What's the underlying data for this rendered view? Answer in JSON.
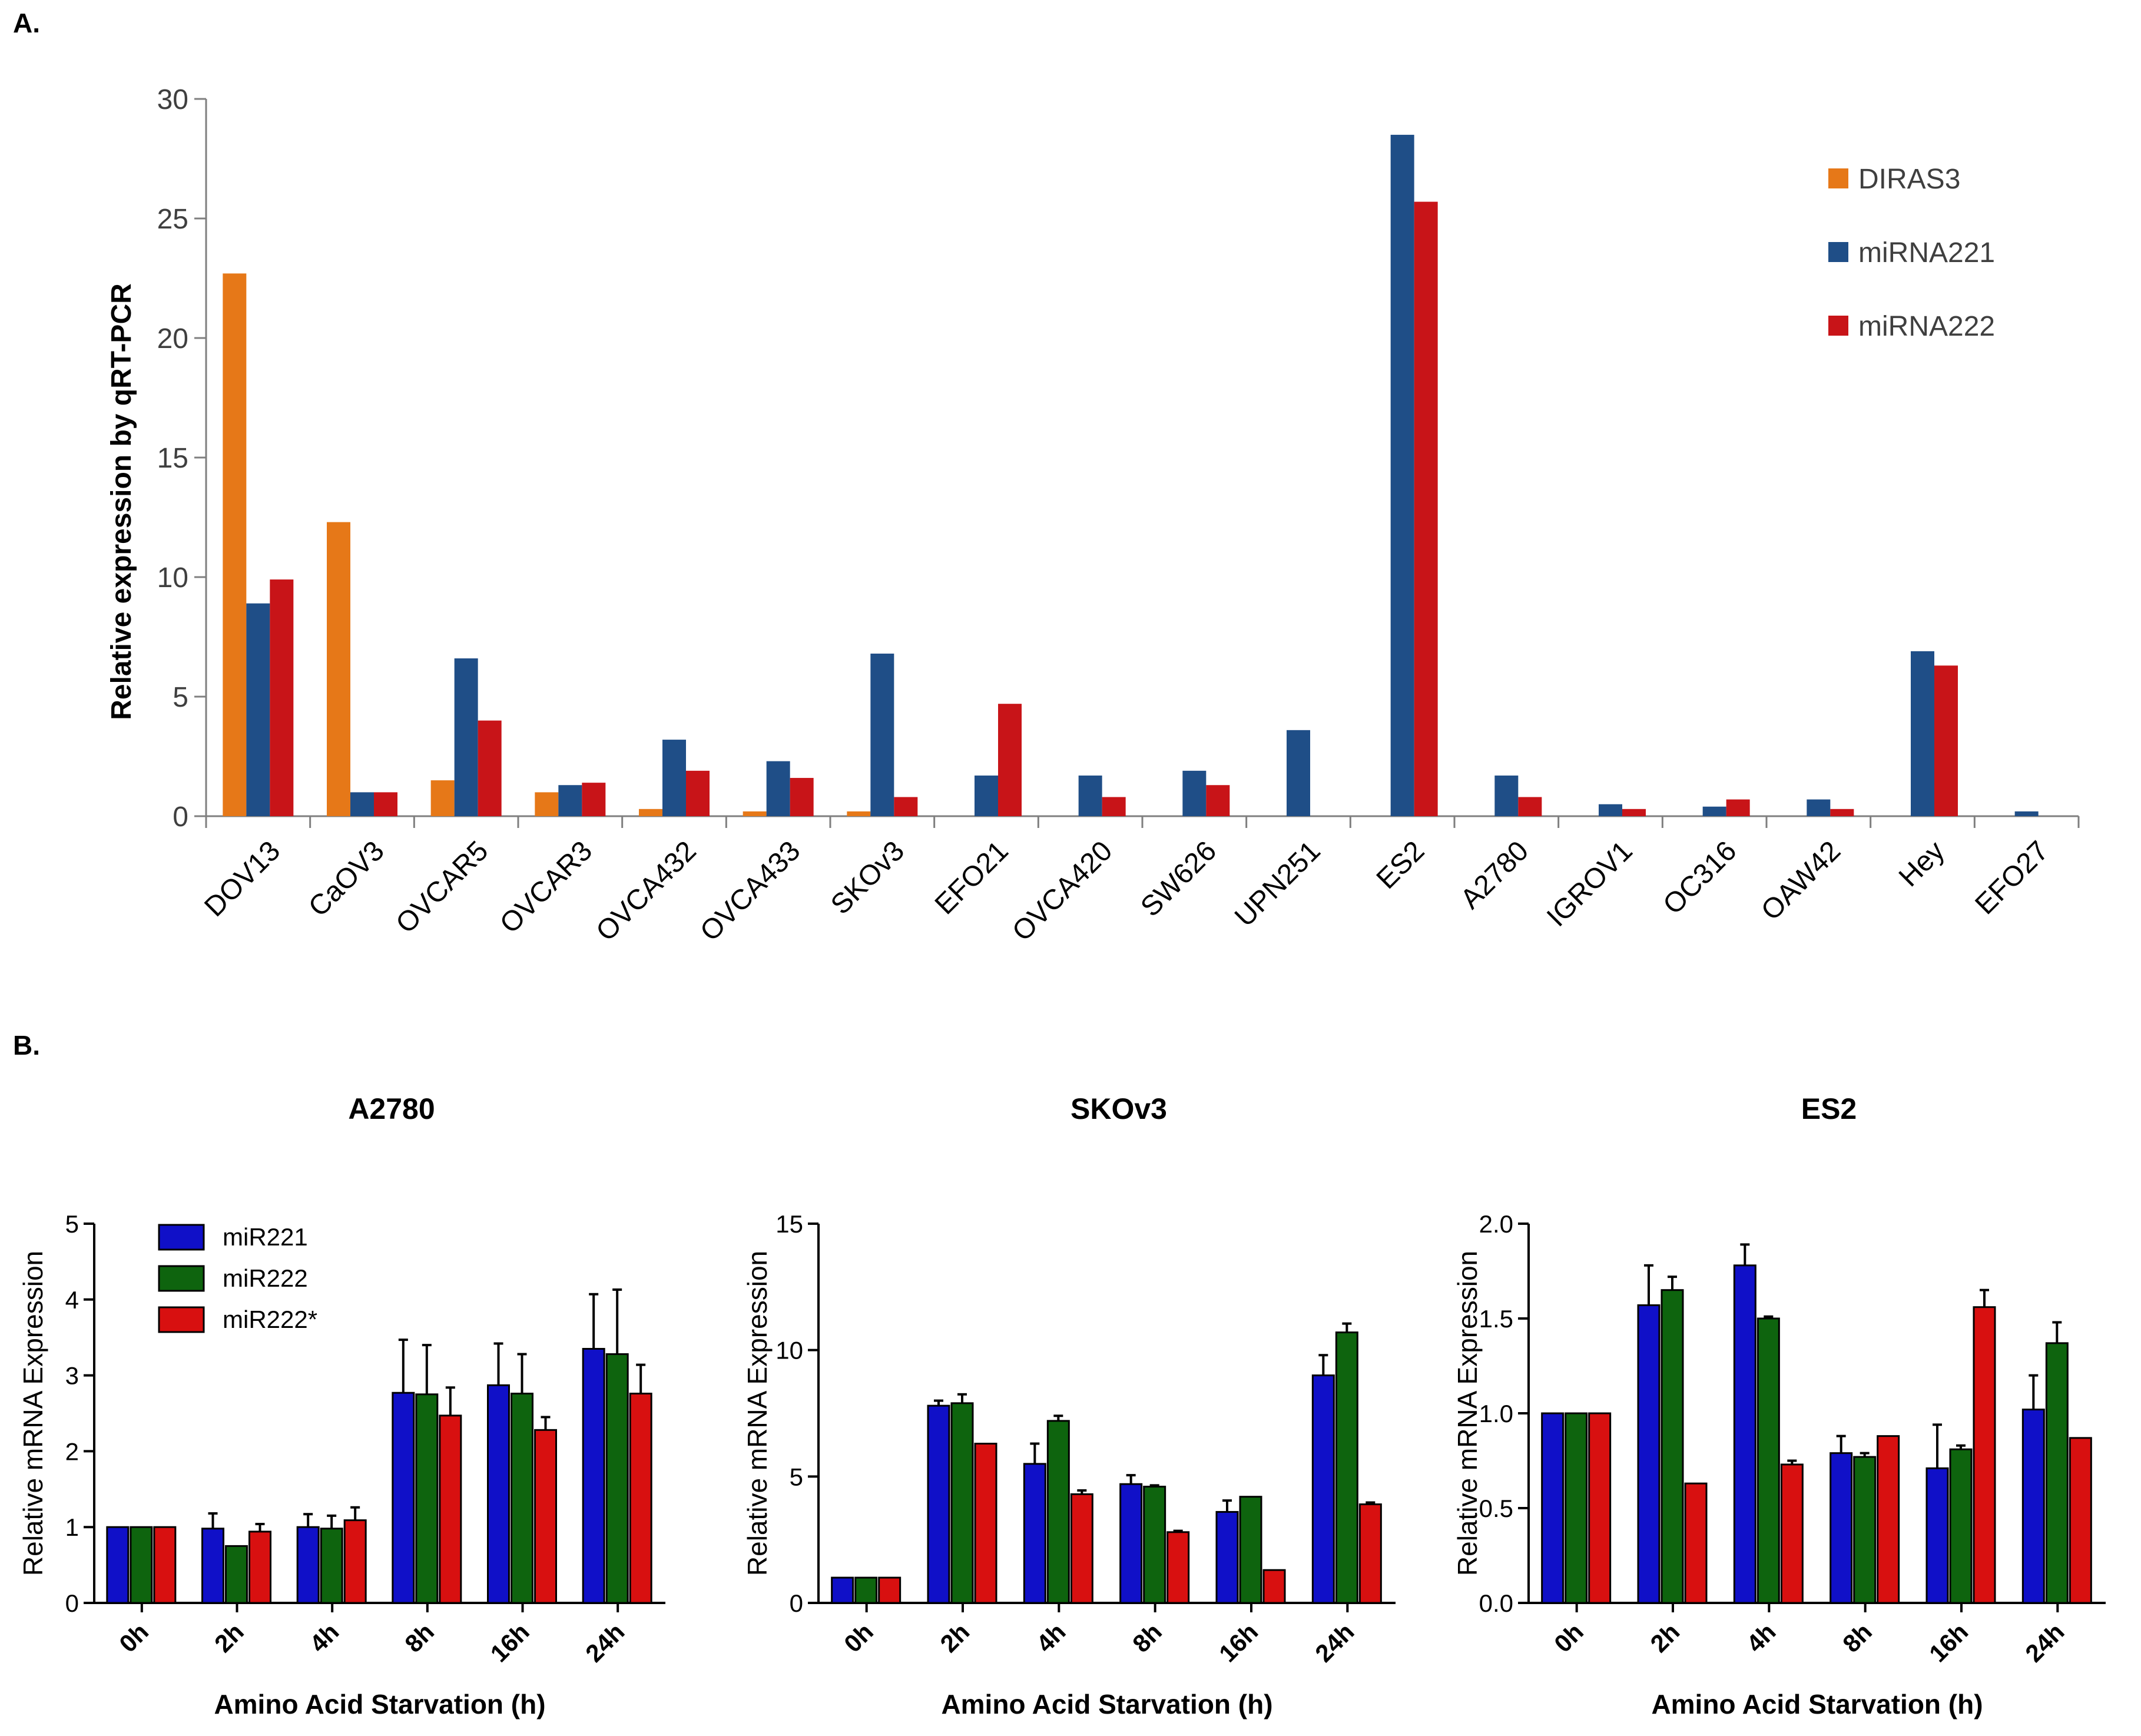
{
  "panels": {
    "a": "A.",
    "b": "B."
  },
  "chart_data": [
    {
      "type": "bar",
      "ylabel": "Relative expression by qRT-PCR",
      "ylim": [
        0,
        30
      ],
      "yticks": [
        0,
        5,
        10,
        15,
        20,
        25,
        30
      ],
      "categories": [
        "DOV13",
        "CaOV3",
        "OVCAR5",
        "OVCAR3",
        "OVCA432",
        "OVCA433",
        "SKOv3",
        "EFO21",
        "OVCA420",
        "SW626",
        "UPN251",
        "ES2",
        "A2780",
        "IGROV1",
        "OC316",
        "OAW42",
        "Hey",
        "EFO27"
      ],
      "legend_position": "top-right",
      "series": [
        {
          "name": "DIRAS3",
          "color": "#E67818",
          "values": [
            22.7,
            12.3,
            1.5,
            1.0,
            0.3,
            0.2,
            0.2,
            0,
            0,
            0,
            0,
            0,
            0,
            0,
            0,
            0,
            0,
            0
          ]
        },
        {
          "name": "miRNA221",
          "color": "#1F4E87",
          "values": [
            8.9,
            1.0,
            6.6,
            1.3,
            3.2,
            2.3,
            6.8,
            1.7,
            1.7,
            1.9,
            3.6,
            28.5,
            1.7,
            0.5,
            0.4,
            0.7,
            6.9,
            0.2
          ]
        },
        {
          "name": "miRNA222",
          "color": "#C81418",
          "values": [
            9.9,
            1.0,
            4.0,
            1.4,
            1.9,
            1.6,
            0.8,
            4.7,
            0.8,
            1.3,
            0,
            25.7,
            0.8,
            0.3,
            0.7,
            0.3,
            6.3,
            0
          ]
        }
      ]
    },
    {
      "type": "bar",
      "title": "A2780",
      "xlabel": "Amino Acid Starvation  (h)",
      "ylabel": "Relative mRNA Expression",
      "categories": [
        "0h",
        "2h",
        "4h",
        "8h",
        "16h",
        "24h"
      ],
      "ylim": [
        0,
        5
      ],
      "yticks": [
        0,
        1,
        2,
        3,
        4,
        5
      ],
      "ytick_labels": [
        "0",
        "1",
        "2",
        "3",
        "4",
        "5"
      ],
      "show_legend": true,
      "series": [
        {
          "name": "miR221",
          "color": "#1010C8",
          "values": [
            1.0,
            0.98,
            1.0,
            2.77,
            2.87,
            3.35
          ],
          "errors": [
            0,
            0.2,
            0.17,
            0.7,
            0.55,
            0.72
          ]
        },
        {
          "name": "miR222",
          "color": "#0E640E",
          "values": [
            1.0,
            0.75,
            0.98,
            2.75,
            2.76,
            3.28
          ],
          "errors": [
            0,
            0,
            0.17,
            0.65,
            0.52,
            0.85
          ]
        },
        {
          "name": "miR222*",
          "color": "#D81010",
          "values": [
            1.0,
            0.94,
            1.09,
            2.47,
            2.28,
            2.76
          ],
          "errors": [
            0,
            0.1,
            0.17,
            0.37,
            0.17,
            0.38
          ]
        }
      ]
    },
    {
      "type": "bar",
      "title": "SKOv3",
      "xlabel": "Amino Acid Starvation  (h)",
      "ylabel": "Relative mRNA Expression",
      "categories": [
        "0h",
        "2h",
        "4h",
        "8h",
        "16h",
        "24h"
      ],
      "ylim": [
        0,
        15
      ],
      "yticks": [
        0,
        5,
        10,
        15
      ],
      "ytick_labels": [
        "0",
        "5",
        "10",
        "15"
      ],
      "show_legend": false,
      "series": [
        {
          "name": "miR221",
          "color": "#1010C8",
          "values": [
            1.0,
            7.8,
            5.5,
            4.7,
            3.6,
            9.0
          ],
          "errors": [
            0,
            0.2,
            0.8,
            0.35,
            0.45,
            0.8
          ]
        },
        {
          "name": "miR222",
          "color": "#0E640E",
          "values": [
            1.0,
            7.9,
            7.2,
            4.6,
            4.2,
            10.7
          ],
          "errors": [
            0,
            0.35,
            0.2,
            0.05,
            0,
            0.35
          ]
        },
        {
          "name": "miR222*",
          "color": "#D81010",
          "values": [
            1.0,
            6.3,
            4.3,
            2.8,
            1.3,
            3.9
          ],
          "errors": [
            0,
            0,
            0.15,
            0.05,
            0,
            0.07
          ]
        }
      ]
    },
    {
      "type": "bar",
      "title": "ES2",
      "xlabel": "Amino Acid Starvation  (h)",
      "ylabel": "Relative mRNA Expression",
      "categories": [
        "0h",
        "2h",
        "4h",
        "8h",
        "16h",
        "24h"
      ],
      "ylim": [
        0,
        2.0
      ],
      "yticks": [
        0,
        0.5,
        1.0,
        1.5,
        2.0
      ],
      "ytick_labels": [
        "0.0",
        "0.5",
        "1.0",
        "1.5",
        "2.0"
      ],
      "show_legend": false,
      "series": [
        {
          "name": "miR221",
          "color": "#1010C8",
          "values": [
            1.0,
            1.57,
            1.78,
            0.79,
            0.71,
            1.02
          ],
          "errors": [
            0,
            0.21,
            0.11,
            0.09,
            0.23,
            0.18
          ]
        },
        {
          "name": "miR222",
          "color": "#0E640E",
          "values": [
            1.0,
            1.65,
            1.5,
            0.77,
            0.81,
            1.37
          ],
          "errors": [
            0,
            0.07,
            0.01,
            0.02,
            0.02,
            0.11
          ]
        },
        {
          "name": "miR222*",
          "color": "#D81010",
          "values": [
            1.0,
            0.63,
            0.73,
            0.88,
            1.56,
            0.87
          ],
          "errors": [
            0,
            0,
            0.02,
            0,
            0.09,
            0
          ]
        }
      ]
    }
  ]
}
